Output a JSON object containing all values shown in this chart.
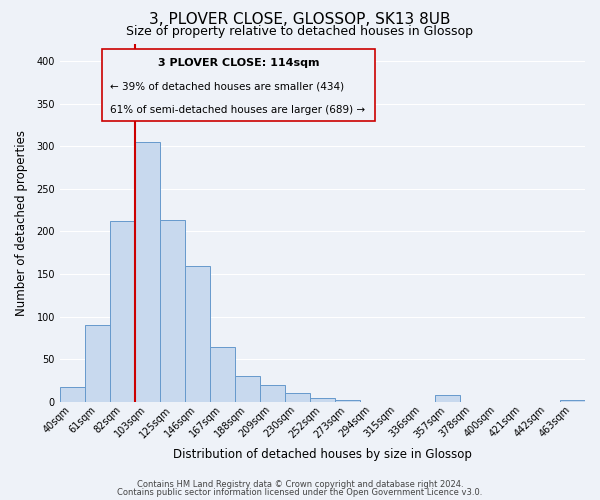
{
  "title": "3, PLOVER CLOSE, GLOSSOP, SK13 8UB",
  "subtitle": "Size of property relative to detached houses in Glossop",
  "xlabel": "Distribution of detached houses by size in Glossop",
  "ylabel": "Number of detached properties",
  "bar_color": "#c8d9ee",
  "bar_edge_color": "#6699cc",
  "bin_labels": [
    "40sqm",
    "61sqm",
    "82sqm",
    "103sqm",
    "125sqm",
    "146sqm",
    "167sqm",
    "188sqm",
    "209sqm",
    "230sqm",
    "252sqm",
    "273sqm",
    "294sqm",
    "315sqm",
    "336sqm",
    "357sqm",
    "378sqm",
    "400sqm",
    "421sqm",
    "442sqm",
    "463sqm"
  ],
  "bar_heights": [
    17,
    90,
    212,
    305,
    213,
    160,
    64,
    30,
    20,
    10,
    5,
    2,
    0,
    0,
    0,
    8,
    0,
    0,
    0,
    0,
    2
  ],
  "vline_x_index": 3,
  "vline_color": "#cc0000",
  "ylim": [
    0,
    420
  ],
  "yticks": [
    0,
    50,
    100,
    150,
    200,
    250,
    300,
    350,
    400
  ],
  "annotation_title": "3 PLOVER CLOSE: 114sqm",
  "annotation_line1": "← 39% of detached houses are smaller (434)",
  "annotation_line2": "61% of semi-detached houses are larger (689) →",
  "footer1": "Contains HM Land Registry data © Crown copyright and database right 2024.",
  "footer2": "Contains public sector information licensed under the Open Government Licence v3.0.",
  "background_color": "#eef2f8",
  "grid_color": "#ffffff",
  "title_fontsize": 11,
  "subtitle_fontsize": 9,
  "axis_label_fontsize": 8.5,
  "tick_fontsize": 7,
  "footer_fontsize": 6
}
